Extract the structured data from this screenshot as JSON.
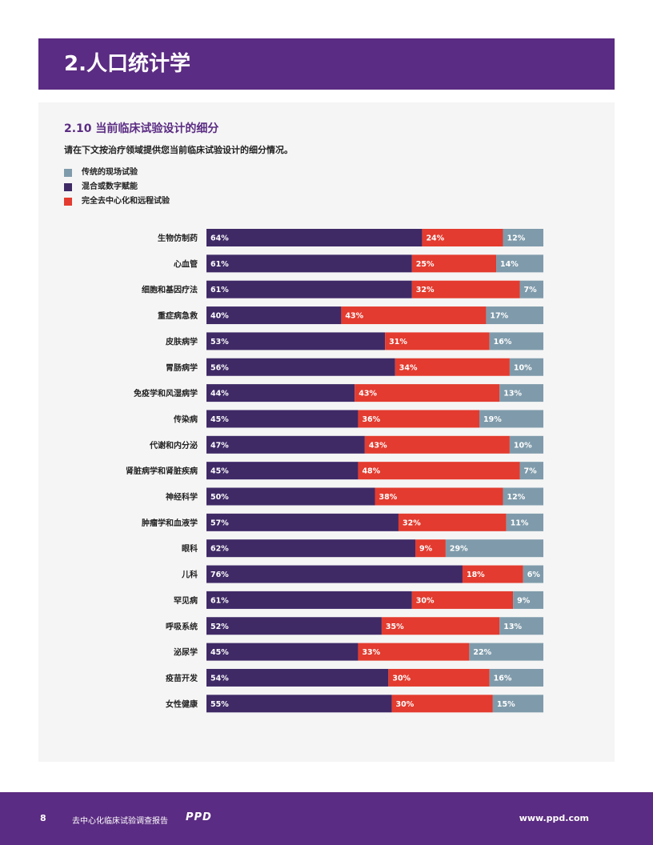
{
  "header": {
    "title": "2.人口统计学"
  },
  "section": {
    "title": "2.10 当前临床试验设计的细分",
    "question": "请在下文按治疗领域提供您当前临床试验设计的细分情况。"
  },
  "colors": {
    "traditional": "#7f9bab",
    "hybrid": "#3f2a66",
    "decentralized": "#e33b2f",
    "accent": "#5b2c83"
  },
  "chart_data": {
    "type": "bar",
    "stacked": true,
    "orientation": "horizontal",
    "unit": "%",
    "legend_position": "top-left",
    "categories": [
      "生物仿制药",
      "心血管",
      "细胞和基因疗法",
      "重症病急救",
      "皮肤病学",
      "胃肠病学",
      "免疫学和风湿病学",
      "传染病",
      "代谢和内分泌",
      "肾脏病学和肾脏疾病",
      "神经科学",
      "肿瘤学和血液学",
      "眼科",
      "儿科",
      "罕见病",
      "呼吸系统",
      "泌尿学",
      "疫苗开发",
      "女性健康"
    ],
    "series": [
      {
        "name": "混合或数字赋能",
        "values": [
          64,
          61,
          61,
          40,
          53,
          56,
          44,
          45,
          47,
          45,
          50,
          57,
          62,
          76,
          61,
          52,
          45,
          54,
          55
        ]
      },
      {
        "name": "完全去中心化和远程试验",
        "values": [
          24,
          25,
          32,
          43,
          31,
          34,
          43,
          36,
          43,
          48,
          38,
          32,
          9,
          18,
          30,
          35,
          33,
          30,
          30
        ]
      },
      {
        "name": "传统的现场试验",
        "values": [
          12,
          14,
          7,
          17,
          16,
          10,
          13,
          19,
          10,
          7,
          12,
          11,
          29,
          6,
          9,
          13,
          22,
          16,
          15
        ]
      }
    ],
    "legend": [
      "传统的现场试验",
      "混合或数字赋能",
      "完全去中心化和远程试验"
    ]
  },
  "footer": {
    "page_number": "8",
    "report_title": "去中心化临床试验调查报告",
    "logo_text": "PPD",
    "url": "www.ppd.com"
  }
}
